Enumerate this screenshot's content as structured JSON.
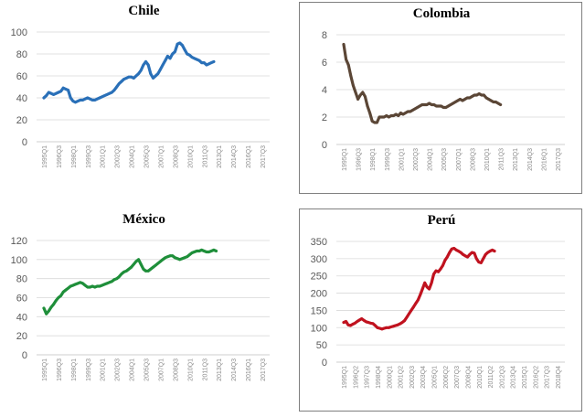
{
  "charts": [
    {
      "id": "chile",
      "chart_data": {
        "type": "line",
        "title": "Chile",
        "xlabel": "",
        "ylabel": "",
        "color": "#2a70b8",
        "ylim": [
          0,
          100
        ],
        "yticks": [
          0,
          20,
          40,
          60,
          80,
          100
        ],
        "xtick_labels": [
          "1995Q1",
          "1996Q3",
          "1998Q1",
          "1999Q3",
          "2001Q1",
          "2002Q3",
          "2004Q1",
          "2005Q3",
          "2007Q1",
          "2008Q3",
          "2010Q1",
          "2011Q3",
          "2013Q1",
          "2014Q3",
          "2016Q1",
          "2017Q3"
        ],
        "x_start": "1995Q1",
        "values": [
          40,
          42,
          45,
          44,
          43,
          44,
          45,
          46,
          49,
          48,
          47,
          40,
          37,
          36,
          37,
          38,
          38,
          39,
          40,
          39,
          38,
          38,
          39,
          40,
          41,
          42,
          43,
          44,
          45,
          47,
          50,
          53,
          55,
          57,
          58,
          59,
          59,
          58,
          60,
          62,
          65,
          70,
          73,
          70,
          62,
          58,
          60,
          62,
          66,
          70,
          74,
          78,
          76,
          80,
          82,
          89,
          90,
          88,
          84,
          80,
          79,
          77,
          76,
          75,
          74,
          72,
          72,
          70,
          71,
          72,
          73
        ]
      }
    },
    {
      "id": "colombia",
      "chart_data": {
        "type": "line",
        "title": "Colombia",
        "xlabel": "",
        "ylabel": "",
        "color": "#5b4636",
        "ylim": [
          0,
          8
        ],
        "yticks": [
          0,
          2,
          4,
          6,
          8
        ],
        "xtick_labels": [
          "1995Q1",
          "1996Q3",
          "1998Q1",
          "1999Q3",
          "2001Q1",
          "2002Q3",
          "2004Q1",
          "2005Q3",
          "2007Q1",
          "2008Q3",
          "2010Q1",
          "2011Q3",
          "2013Q1",
          "2014Q3",
          "2016Q1",
          "2017Q3"
        ],
        "x_start": "1995Q1",
        "values": [
          7.3,
          6.2,
          5.8,
          5.0,
          4.3,
          3.8,
          3.3,
          3.6,
          3.8,
          3.5,
          2.8,
          2.3,
          1.7,
          1.6,
          1.6,
          2.0,
          2.0,
          2.0,
          2.1,
          2.0,
          2.1,
          2.1,
          2.2,
          2.1,
          2.3,
          2.2,
          2.3,
          2.4,
          2.4,
          2.5,
          2.6,
          2.7,
          2.8,
          2.9,
          2.9,
          2.9,
          3.0,
          2.9,
          2.9,
          2.8,
          2.8,
          2.8,
          2.7,
          2.7,
          2.8,
          2.9,
          3.0,
          3.1,
          3.2,
          3.3,
          3.2,
          3.3,
          3.4,
          3.4,
          3.5,
          3.6,
          3.6,
          3.7,
          3.6,
          3.6,
          3.4,
          3.3,
          3.2,
          3.1,
          3.1,
          3.0,
          2.9
        ]
      }
    },
    {
      "id": "mexico",
      "chart_data": {
        "type": "line",
        "title": "México",
        "xlabel": "",
        "ylabel": "",
        "color": "#1f8f3a",
        "ylim": [
          0,
          120
        ],
        "yticks": [
          0,
          20,
          40,
          60,
          80,
          100,
          120
        ],
        "xtick_labels": [
          "1995Q1",
          "1996Q3",
          "1998Q1",
          "1999Q3",
          "2001Q1",
          "2002Q3",
          "2004Q1",
          "2005Q3",
          "2007Q1",
          "2008Q3",
          "2010Q1",
          "2011Q3",
          "2013Q1",
          "2014Q3",
          "2016Q1",
          "2017Q3"
        ],
        "x_start": "1995Q1",
        "values": [
          49,
          43,
          46,
          50,
          53,
          57,
          60,
          62,
          66,
          68,
          70,
          72,
          73,
          74,
          75,
          76,
          75,
          73,
          71,
          71,
          72,
          71,
          72,
          72,
          73,
          74,
          75,
          76,
          77,
          79,
          80,
          82,
          85,
          87,
          88,
          90,
          92,
          95,
          98,
          100,
          95,
          90,
          88,
          88,
          90,
          92,
          94,
          96,
          98,
          100,
          102,
          103,
          104,
          104,
          102,
          101,
          100,
          101,
          102,
          103,
          105,
          107,
          108,
          109,
          109,
          110,
          109,
          108,
          108,
          109,
          110,
          109
        ]
      }
    },
    {
      "id": "peru",
      "chart_data": {
        "type": "line",
        "title": "Perú",
        "xlabel": "",
        "ylabel": "",
        "color": "#c0121f",
        "ylim": [
          0,
          350
        ],
        "yticks": [
          0,
          50,
          100,
          150,
          200,
          250,
          300,
          350
        ],
        "xtick_labels": [
          "1995Q1",
          "1996Q2",
          "1997Q3",
          "1998Q4",
          "2000Q1",
          "2001Q2",
          "2002Q3",
          "2003Q4",
          "2005Q1",
          "2006Q2",
          "2007Q3",
          "2008Q4",
          "2010Q1",
          "2011Q2",
          "2012Q3",
          "2013Q4",
          "2015Q1",
          "2016Q2",
          "2017Q3",
          "2018Q4"
        ],
        "x_start": "1995Q1",
        "values": [
          115,
          118,
          108,
          106,
          110,
          113,
          118,
          122,
          126,
          121,
          117,
          115,
          113,
          112,
          106,
          100,
          98,
          96,
          98,
          100,
          100,
          102,
          104,
          106,
          108,
          111,
          115,
          120,
          130,
          140,
          150,
          160,
          170,
          180,
          195,
          212,
          230,
          218,
          212,
          230,
          255,
          265,
          262,
          270,
          280,
          295,
          305,
          318,
          328,
          330,
          325,
          322,
          318,
          312,
          308,
          305,
          312,
          318,
          316,
          300,
          290,
          288,
          300,
          312,
          318,
          322,
          325,
          322
        ]
      }
    }
  ]
}
